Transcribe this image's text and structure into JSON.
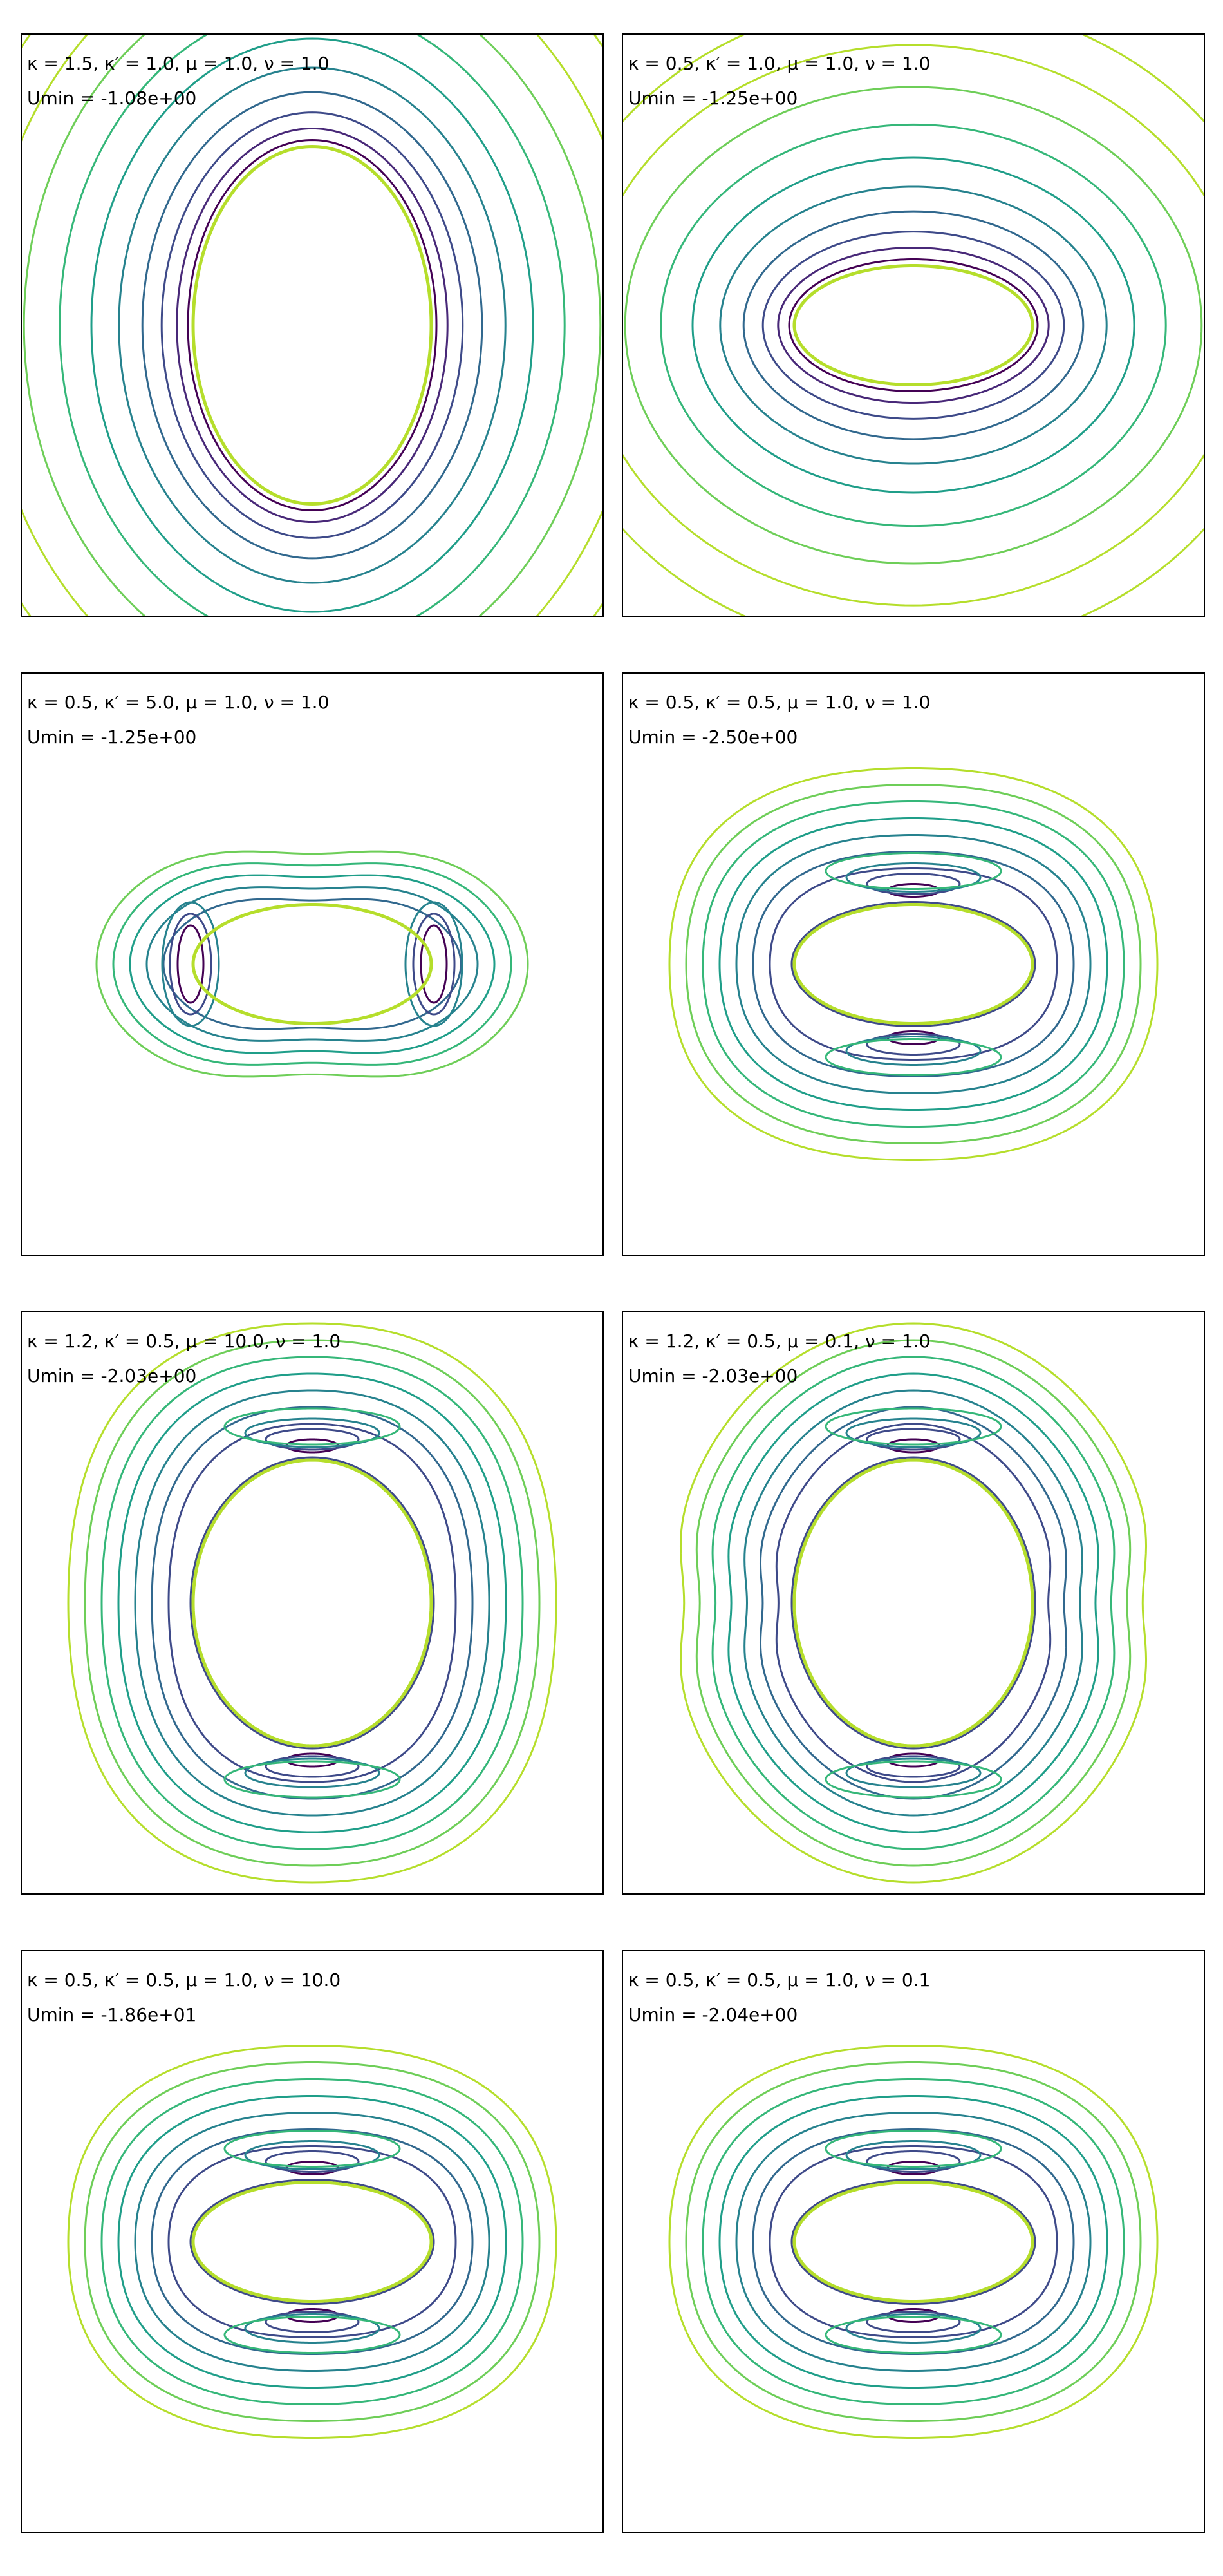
{
  "figure": {
    "colors": [
      "#440154",
      "#482878",
      "#3e4a89",
      "#31688e",
      "#26828e",
      "#1f9e89",
      "#35b779",
      "#6ece58",
      "#b5de2b"
    ]
  },
  "chart_data": [
    {
      "type": "contour",
      "params_text": "κ = 1.5, κ′ = 1.0, μ = 1.0, ν = 1.0",
      "umin_text": "Umin = -1.08e+00",
      "params": {
        "kappa": 1.5,
        "kappa_prime": 1.0,
        "mu": 1.0,
        "nu": 1.0
      },
      "umin": -1.08,
      "inner_ellipse": {
        "a": 1.0,
        "b": 1.5
      },
      "level_count": 10,
      "shape": "uniform"
    },
    {
      "type": "contour",
      "params_text": "κ = 0.5, κ′ = 1.0, μ = 1.0, ν = 1.0",
      "umin_text": "Umin = -1.25e+00",
      "params": {
        "kappa": 0.5,
        "kappa_prime": 1.0,
        "mu": 1.0,
        "nu": 1.0
      },
      "umin": -1.25,
      "inner_ellipse": {
        "a": 1.0,
        "b": 0.5
      },
      "level_count": 10,
      "shape": "uniform"
    },
    {
      "type": "contour",
      "params_text": "κ = 0.5, κ′ = 5.0, μ = 1.0, ν = 1.0",
      "umin_text": "Umin = -1.25e+00",
      "params": {
        "kappa": 0.5,
        "kappa_prime": 5.0,
        "mu": 1.0,
        "nu": 1.0
      },
      "umin": -1.25,
      "inner_ellipse": {
        "a": 1.0,
        "b": 0.5
      },
      "level_count": 6,
      "shape": "side-lobes"
    },
    {
      "type": "contour",
      "params_text": "κ = 0.5, κ′ = 0.5, μ = 1.0, ν = 1.0",
      "umin_text": "Umin = -2.50e+00",
      "params": {
        "kappa": 0.5,
        "kappa_prime": 0.5,
        "mu": 1.0,
        "nu": 1.0
      },
      "umin": -2.5,
      "inner_ellipse": {
        "a": 1.0,
        "b": 0.5
      },
      "level_count": 9,
      "shape": "top-bottom-lobes"
    },
    {
      "type": "contour",
      "params_text": "κ = 1.2, κ′ = 0.5, μ = 10.0, ν = 1.0",
      "umin_text": "Umin = -2.03e+00",
      "params": {
        "kappa": 1.2,
        "kappa_prime": 0.5,
        "mu": 10.0,
        "nu": 1.0
      },
      "umin": -2.03,
      "inner_ellipse": {
        "a": 1.0,
        "b": 1.2
      },
      "level_count": 9,
      "shape": "top-bottom-lobes"
    },
    {
      "type": "contour",
      "params_text": "κ = 1.2, κ′ = 0.5, μ = 0.1, ν = 1.0",
      "umin_text": "Umin = -2.03e+00",
      "params": {
        "kappa": 1.2,
        "kappa_prime": 0.5,
        "mu": 0.1,
        "nu": 1.0
      },
      "umin": -2.03,
      "inner_ellipse": {
        "a": 1.0,
        "b": 1.2
      },
      "level_count": 9,
      "shape": "notched"
    },
    {
      "type": "contour",
      "params_text": "κ = 0.5, κ′ = 0.5, μ = 1.0, ν = 10.0",
      "umin_text": "Umin = -1.86e+01",
      "params": {
        "kappa": 0.5,
        "kappa_prime": 0.5,
        "mu": 1.0,
        "nu": 10.0
      },
      "umin": -18.6,
      "inner_ellipse": {
        "a": 1.0,
        "b": 0.5
      },
      "level_count": 9,
      "shape": "top-bottom-lobes"
    },
    {
      "type": "contour",
      "params_text": "κ = 0.5, κ′ = 0.5, μ = 1.0, ν = 0.1",
      "umin_text": "Umin = -2.04e+00",
      "params": {
        "kappa": 0.5,
        "kappa_prime": 0.5,
        "mu": 1.0,
        "nu": 0.1
      },
      "umin": -2.04,
      "inner_ellipse": {
        "a": 1.0,
        "b": 0.5
      },
      "level_count": 9,
      "shape": "top-bottom-lobes"
    }
  ]
}
